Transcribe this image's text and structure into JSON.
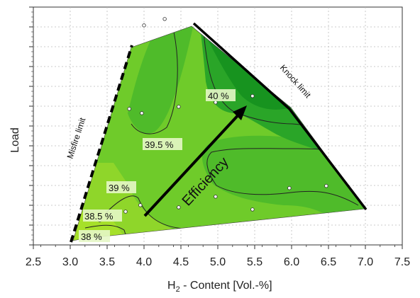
{
  "chart_data": {
    "type": "contour",
    "xlabel": "H",
    "xlabel_sub": "2",
    "xlabel_rest": " - Content [Vol.-%]",
    "ylabel": "Load",
    "xlim": [
      2.5,
      7.5
    ],
    "x_ticks": [
      "2.5",
      "3.0",
      "3.5",
      "4.0",
      "4.5",
      "5.0",
      "5.5",
      "6.0",
      "6.5",
      "7.0",
      "7.5"
    ],
    "grid": true,
    "contour_labels": [
      "38 %",
      "38.5 %",
      "39 %",
      "39.5 %",
      "40 %"
    ],
    "annotations": {
      "misfire": "Misfire limit",
      "knock": "Knock limit",
      "efficiency": "Efficiency"
    },
    "measurement_points": [
      {
        "x": 3.4,
        "y": 0.06
      },
      {
        "x": 3.75,
        "y": 0.1
      },
      {
        "x": 3.95,
        "y": 0.13
      },
      {
        "x": 3.8,
        "y": 0.58
      },
      {
        "x": 3.97,
        "y": 0.56
      },
      {
        "x": 4.47,
        "y": 0.59
      },
      {
        "x": 4.47,
        "y": 0.12
      },
      {
        "x": 4.97,
        "y": 0.17
      },
      {
        "x": 4.97,
        "y": 0.61
      },
      {
        "x": 5.47,
        "y": 0.11
      },
      {
        "x": 5.47,
        "y": 0.64
      },
      {
        "x": 5.97,
        "y": 0.21
      },
      {
        "x": 6.47,
        "y": 0.22
      },
      {
        "x": 4.0,
        "y": 0.97
      },
      {
        "x": 4.28,
        "y": 1.0
      }
    ],
    "colors": {
      "low": "#a6e02a",
      "mid": "#5fc52a",
      "high": "#2aa528",
      "peak": "#17931f"
    }
  }
}
